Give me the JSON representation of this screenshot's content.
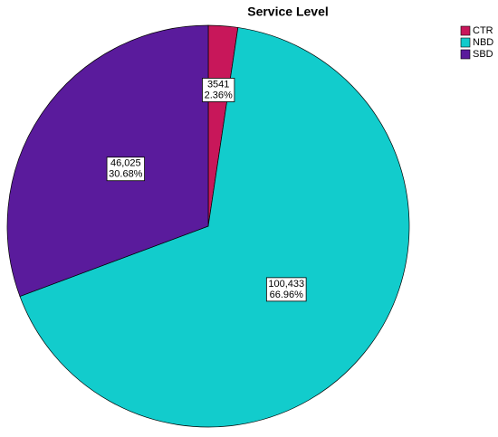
{
  "chart_data": {
    "type": "pie",
    "title": "Service Level",
    "categories": [
      "CTR",
      "NBD",
      "SBD"
    ],
    "values": [
      3541,
      100433,
      46025
    ],
    "value_labels": [
      "3541",
      "100,433",
      "46,025"
    ],
    "percentages": [
      {
        "value": 2.36,
        "label": "2.36%"
      },
      {
        "value": 66.96,
        "label": "66.96%"
      },
      {
        "value": 30.68,
        "label": "30.68%"
      }
    ],
    "colors": [
      "#c8175a",
      "#12cccc",
      "#5a1b9c"
    ],
    "legend": "top-right"
  }
}
